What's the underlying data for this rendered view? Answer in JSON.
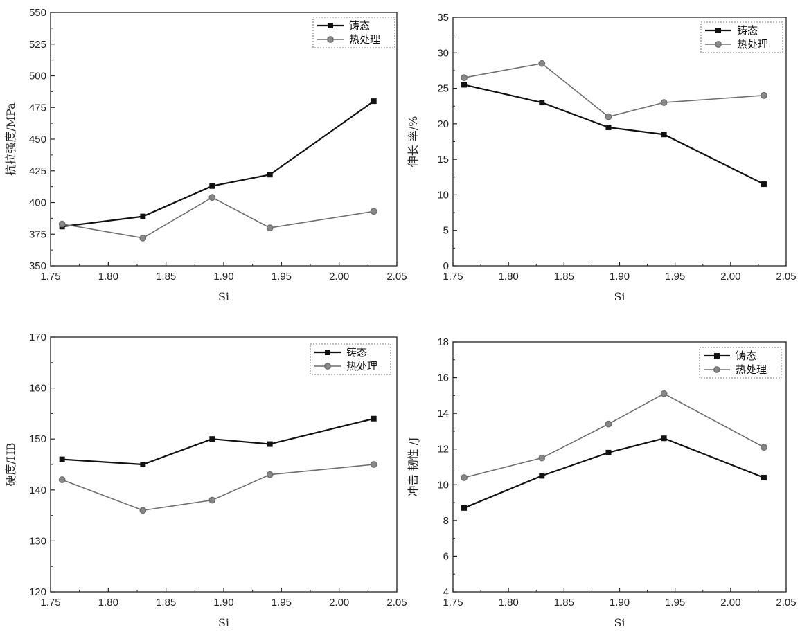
{
  "colors": {
    "cast": "#111111",
    "heat": "#6e6e6e",
    "axis": "#222222"
  },
  "chart_data": [
    {
      "type": "line",
      "title": "",
      "xlabel": "Si",
      "ylabel": "抗拉强度/MPa",
      "xlim": [
        1.75,
        2.05
      ],
      "ylim": [
        350,
        550
      ],
      "xticks": [
        "1.75",
        "1.80",
        "1.85",
        "1.90",
        "1.95",
        "2.00",
        "2.05"
      ],
      "yticks": [
        "350",
        "375",
        "400",
        "425",
        "450",
        "475",
        "500",
        "525",
        "550"
      ],
      "x": [
        1.76,
        1.83,
        1.89,
        1.94,
        2.03
      ],
      "legend_position": "top-right",
      "series": [
        {
          "name": "铸态",
          "marker": "square",
          "values": [
            381,
            389,
            413,
            422,
            480
          ]
        },
        {
          "name": "热处理",
          "marker": "circle",
          "values": [
            383,
            372,
            404,
            380,
            393
          ]
        }
      ]
    },
    {
      "type": "line",
      "title": "",
      "xlabel": "Si",
      "ylabel": "伸长 率/%",
      "xlim": [
        1.75,
        2.05
      ],
      "ylim": [
        0,
        35
      ],
      "xticks": [
        "1.75",
        "1.80",
        "1.85",
        "1.90",
        "1.95",
        "2.00",
        "2.05"
      ],
      "yticks": [
        "0",
        "5",
        "10",
        "15",
        "20",
        "25",
        "30",
        "35"
      ],
      "x": [
        1.76,
        1.83,
        1.89,
        1.94,
        2.03
      ],
      "legend_position": "top-right",
      "series": [
        {
          "name": "铸态",
          "marker": "square",
          "values": [
            25.5,
            23.0,
            19.5,
            18.5,
            11.5
          ]
        },
        {
          "name": "热处理",
          "marker": "circle",
          "values": [
            26.5,
            28.5,
            21.0,
            23.0,
            24.0
          ]
        }
      ]
    },
    {
      "type": "line",
      "title": "",
      "xlabel": "Si",
      "ylabel": "硬度/HB",
      "xlim": [
        1.75,
        2.05
      ],
      "ylim": [
        120,
        170
      ],
      "xticks": [
        "1.75",
        "1.80",
        "1.85",
        "1.90",
        "1.95",
        "2.00",
        "2.05"
      ],
      "yticks": [
        "120",
        "130",
        "140",
        "150",
        "160",
        "170"
      ],
      "x": [
        1.76,
        1.83,
        1.89,
        1.94,
        2.03
      ],
      "legend_position": "top-right",
      "series": [
        {
          "name": "铸态",
          "marker": "square",
          "values": [
            146,
            145,
            150,
            149,
            154
          ]
        },
        {
          "name": "热处理",
          "marker": "circle",
          "values": [
            142,
            136,
            138,
            143,
            145
          ]
        }
      ]
    },
    {
      "type": "line",
      "title": "",
      "xlabel": "Si",
      "ylabel": "冲击 韧性 /J",
      "xlim": [
        1.75,
        2.05
      ],
      "ylim": [
        4,
        18
      ],
      "xticks": [
        "1.75",
        "1.80",
        "1.85",
        "1.90",
        "1.95",
        "2.00",
        "2.05"
      ],
      "yticks": [
        "4",
        "6",
        "8",
        "10",
        "12",
        "14",
        "16",
        "18"
      ],
      "x": [
        1.76,
        1.83,
        1.89,
        1.94,
        2.03
      ],
      "legend_position": "top-right",
      "series": [
        {
          "name": "铸态",
          "marker": "square",
          "values": [
            8.7,
            10.5,
            11.8,
            12.6,
            10.4
          ]
        },
        {
          "name": "热处理",
          "marker": "circle",
          "values": [
            10.4,
            11.5,
            13.4,
            15.1,
            12.1
          ]
        }
      ]
    }
  ]
}
